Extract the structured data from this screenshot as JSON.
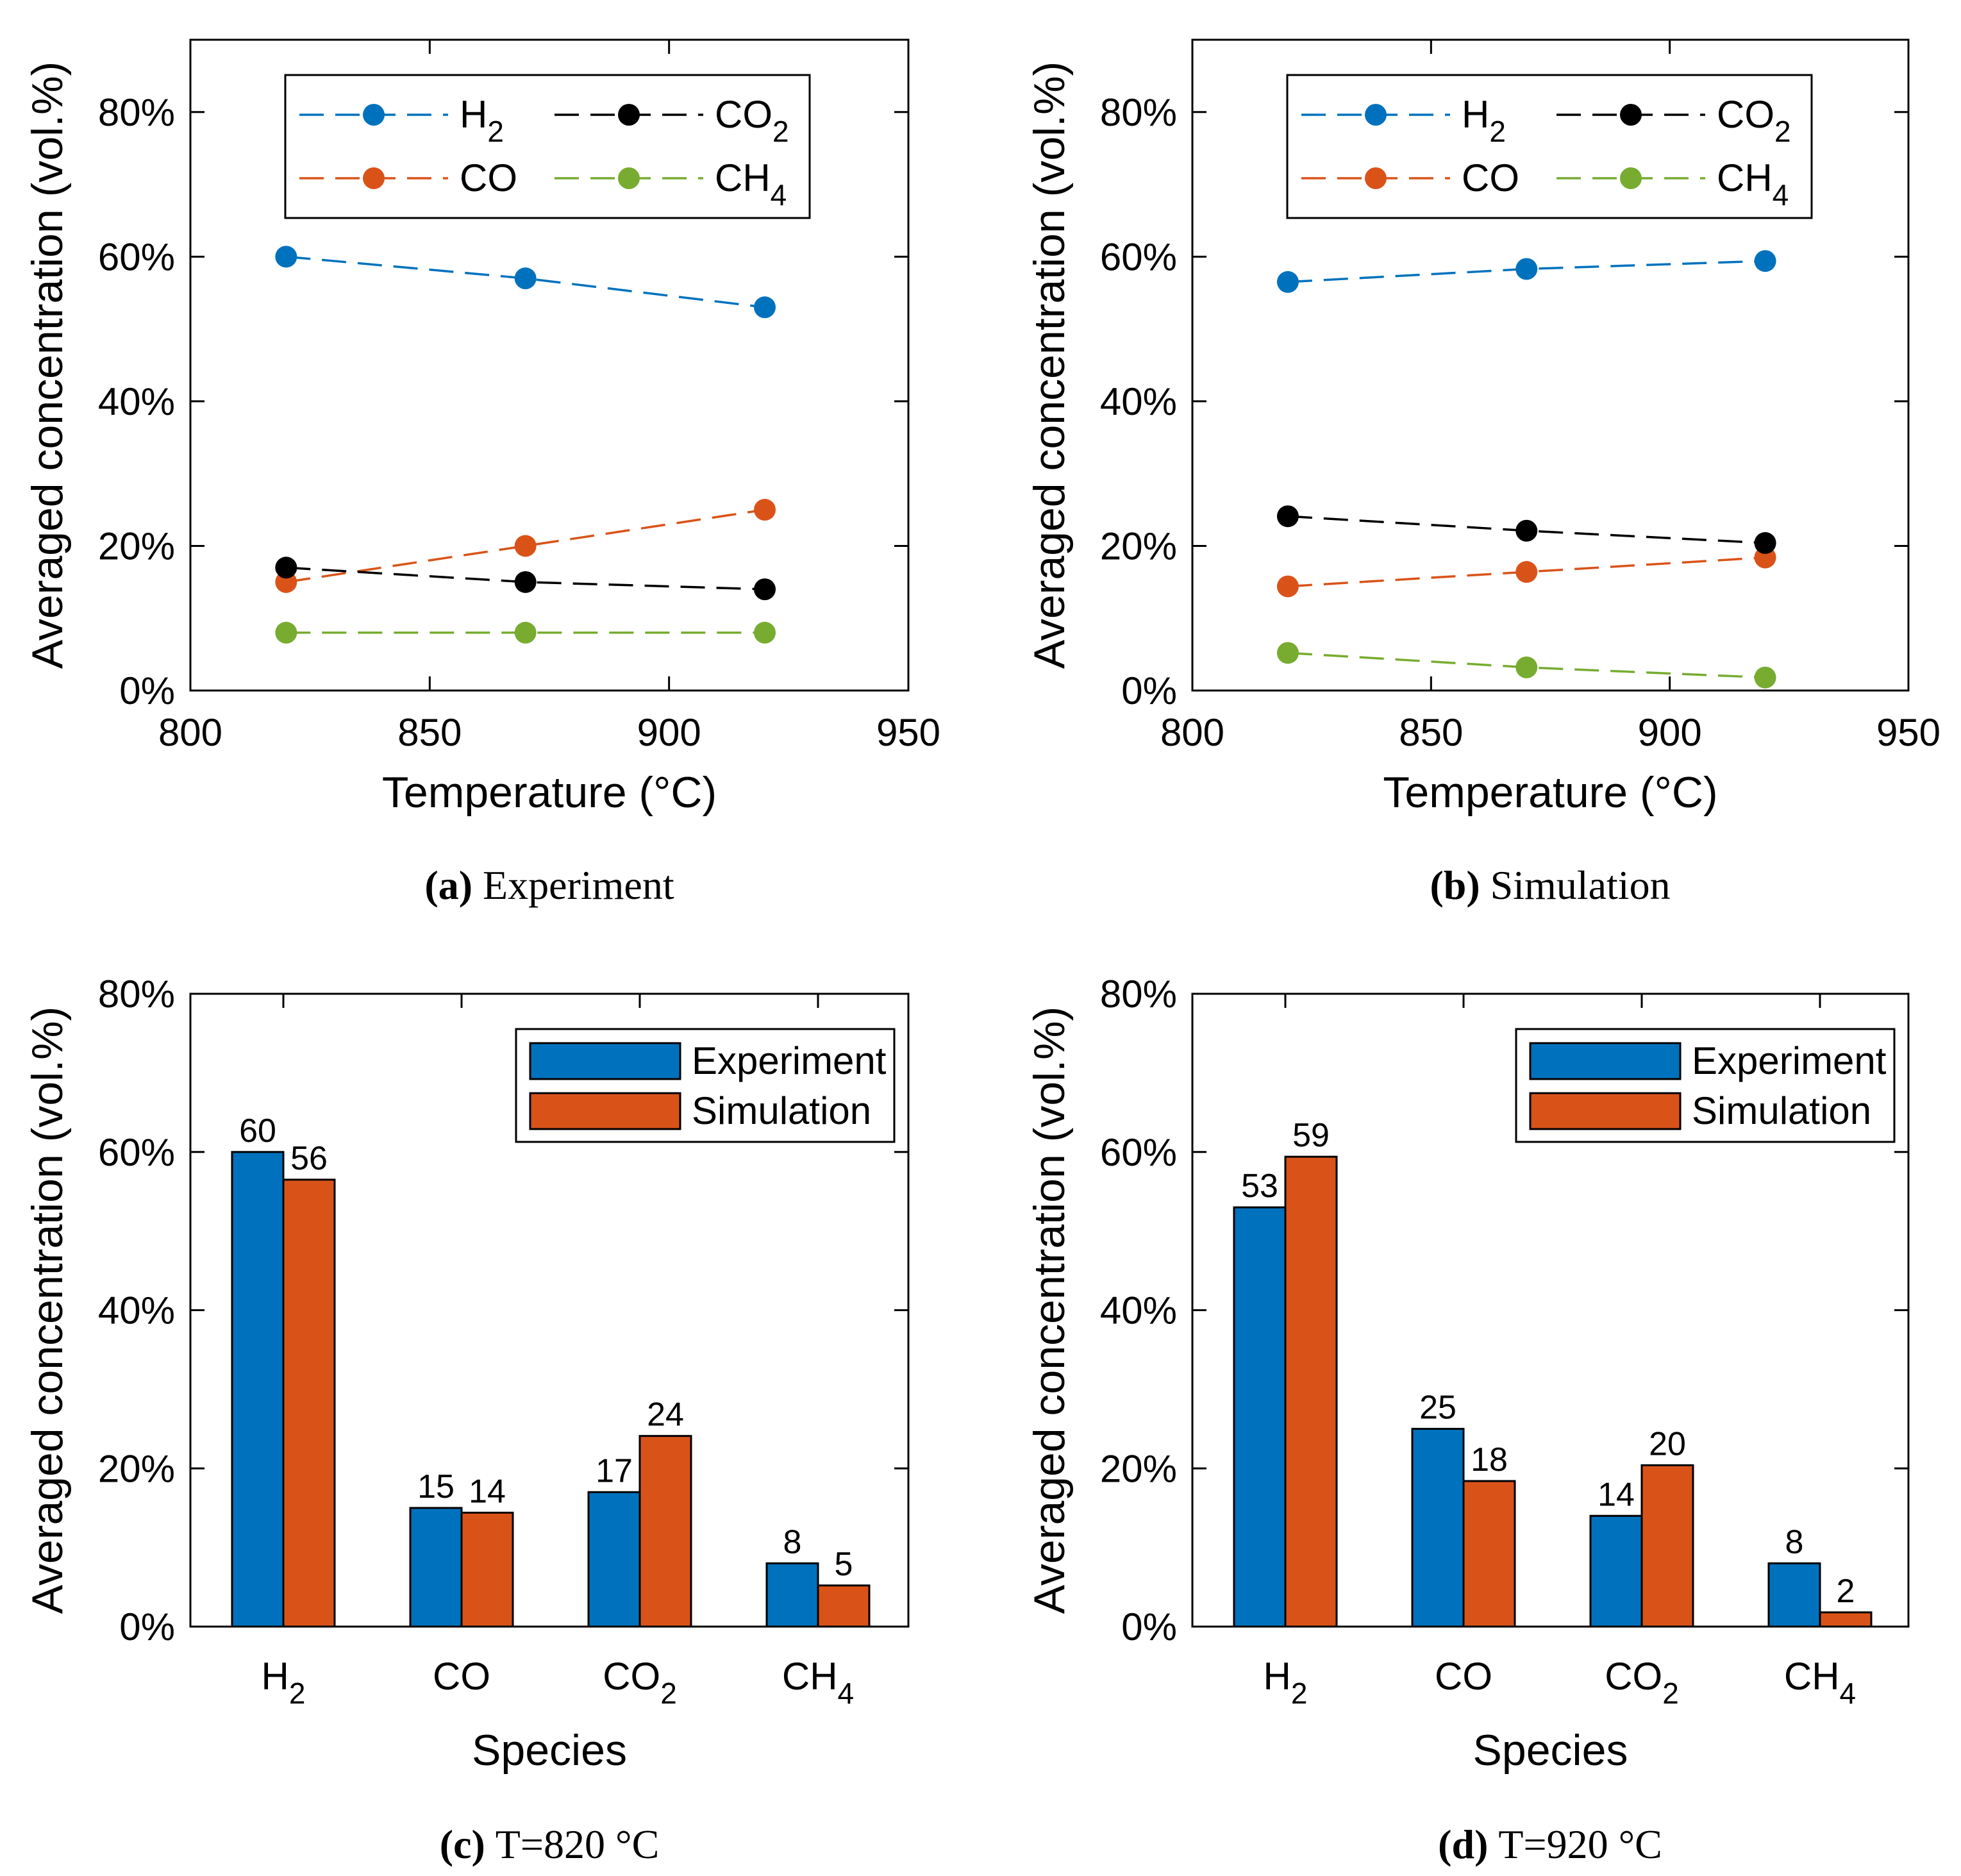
{
  "colors": {
    "H2": "#0072bd",
    "CO": "#d95319",
    "CO2": "#000000",
    "CH4": "#77ac30",
    "experiment": "#0072bd",
    "simulation": "#d95319"
  },
  "chart_data": [
    {
      "id": "a",
      "type": "line",
      "caption_letter": "(a)",
      "caption_text": "Experiment",
      "xlabel": "Temperature (°C)",
      "ylabel": "Averaged concentration (vol.%)",
      "xlim": [
        800,
        950
      ],
      "ylim": [
        0,
        90
      ],
      "xticks": [
        800,
        850,
        900,
        950
      ],
      "xtick_labels": [
        "800",
        "850",
        "900",
        "950"
      ],
      "yticks": [
        0,
        20,
        40,
        60,
        80
      ],
      "ytick_labels": [
        "0%",
        "20%",
        "40%",
        "60%",
        "80%"
      ],
      "x": [
        820,
        870,
        920
      ],
      "legend_position": "top",
      "series": [
        {
          "key": "H2",
          "name": "H",
          "sub": "2",
          "values": [
            60,
            57,
            53
          ]
        },
        {
          "key": "CO",
          "name": "CO",
          "sub": "",
          "values": [
            15,
            20,
            25
          ]
        },
        {
          "key": "CO2",
          "name": "CO",
          "sub": "2",
          "values": [
            17,
            15,
            14
          ]
        },
        {
          "key": "CH4",
          "name": "CH",
          "sub": "4",
          "values": [
            8,
            8,
            8
          ]
        }
      ]
    },
    {
      "id": "b",
      "type": "line",
      "caption_letter": "(b)",
      "caption_text": "Simulation",
      "xlabel": "Temperature (°C)",
      "ylabel": "Averaged concentration (vol.%)",
      "xlim": [
        800,
        950
      ],
      "ylim": [
        0,
        90
      ],
      "xticks": [
        800,
        850,
        900,
        950
      ],
      "xtick_labels": [
        "800",
        "850",
        "900",
        "950"
      ],
      "yticks": [
        0,
        20,
        40,
        60,
        80
      ],
      "ytick_labels": [
        "0%",
        "20%",
        "40%",
        "60%",
        "80%"
      ],
      "x": [
        820,
        870,
        920
      ],
      "legend_position": "top",
      "series": [
        {
          "key": "H2",
          "name": "H",
          "sub": "2",
          "values": [
            56.5,
            58.3,
            59.4
          ]
        },
        {
          "key": "CO",
          "name": "CO",
          "sub": "",
          "values": [
            14.4,
            16.4,
            18.4
          ]
        },
        {
          "key": "CO2",
          "name": "CO",
          "sub": "2",
          "values": [
            24.1,
            22.1,
            20.4
          ]
        },
        {
          "key": "CH4",
          "name": "CH",
          "sub": "4",
          "values": [
            5.2,
            3.2,
            1.8
          ]
        }
      ]
    },
    {
      "id": "c",
      "type": "bar",
      "caption_letter": "(c)",
      "caption_text": "T=820 °C",
      "xlabel": "Species",
      "ylabel": "Averaged concentration (vol.%)",
      "ylim": [
        0,
        80
      ],
      "yticks": [
        0,
        20,
        40,
        60,
        80
      ],
      "ytick_labels": [
        "0%",
        "20%",
        "40%",
        "60%",
        "80%"
      ],
      "categories": [
        {
          "name": "H",
          "sub": "2"
        },
        {
          "name": "CO",
          "sub": ""
        },
        {
          "name": "CO",
          "sub": "2"
        },
        {
          "name": "CH",
          "sub": "4"
        }
      ],
      "legend_position": "top-right",
      "series": [
        {
          "key": "experiment",
          "name": "Experiment",
          "values": [
            60,
            15,
            17,
            8
          ],
          "labels": [
            "60",
            "15",
            "17",
            "8"
          ]
        },
        {
          "key": "simulation",
          "name": "Simulation",
          "values": [
            56.5,
            14.4,
            24.1,
            5.2
          ],
          "labels": [
            "56",
            "14",
            "24",
            "5"
          ]
        }
      ]
    },
    {
      "id": "d",
      "type": "bar",
      "caption_letter": "(d)",
      "caption_text": "T=920 °C",
      "xlabel": "Species",
      "ylabel": "Averaged concentration (vol.%)",
      "ylim": [
        0,
        80
      ],
      "yticks": [
        0,
        20,
        40,
        60,
        80
      ],
      "ytick_labels": [
        "0%",
        "20%",
        "40%",
        "60%",
        "80%"
      ],
      "categories": [
        {
          "name": "H",
          "sub": "2"
        },
        {
          "name": "CO",
          "sub": ""
        },
        {
          "name": "CO",
          "sub": "2"
        },
        {
          "name": "CH",
          "sub": "4"
        }
      ],
      "legend_position": "top-right",
      "series": [
        {
          "key": "experiment",
          "name": "Experiment",
          "values": [
            53,
            25,
            14,
            8
          ],
          "labels": [
            "53",
            "25",
            "14",
            "8"
          ]
        },
        {
          "key": "simulation",
          "name": "Simulation",
          "values": [
            59.4,
            18.4,
            20.4,
            1.8
          ],
          "labels": [
            "59",
            "18",
            "20",
            "2"
          ]
        }
      ]
    }
  ]
}
